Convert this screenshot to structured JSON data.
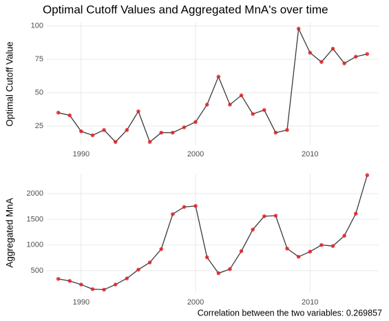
{
  "chart_data": [
    {
      "type": "line",
      "title": "Optimal Cutoff Values and Aggregated MnA's over time",
      "y_label": "Optimal Cutoff Value",
      "x": [
        1988,
        1989,
        1990,
        1991,
        1992,
        1993,
        1994,
        1995,
        1996,
        1997,
        1998,
        1999,
        2000,
        2001,
        2002,
        2003,
        2004,
        2005,
        2006,
        2007,
        2008,
        2009,
        2010,
        2011,
        2012,
        2013,
        2014,
        2015
      ],
      "series": [
        {
          "color": "#e8191c",
          "line_color": "#3a3a3a",
          "values": [
            35,
            33,
            21,
            18,
            22,
            13,
            22,
            36,
            13,
            20,
            20,
            24,
            28,
            41,
            62,
            41,
            48,
            34,
            37,
            20,
            22,
            98,
            80,
            73,
            83,
            72,
            77,
            79
          ]
        }
      ],
      "xlim": [
        1987,
        2016
      ],
      "xticks": [
        1990,
        2000,
        2010
      ],
      "ylim": [
        11,
        103
      ],
      "yticks": [
        25,
        50,
        75,
        100
      ],
      "grid": true
    },
    {
      "type": "line",
      "y_label": "Aggregated MnA",
      "caption": "Correlation between the two variables: 0.269857",
      "x": [
        1988,
        1989,
        1990,
        1991,
        1992,
        1993,
        1994,
        1995,
        1996,
        1997,
        1998,
        1999,
        2000,
        2001,
        2002,
        2003,
        2004,
        2005,
        2006,
        2007,
        2008,
        2009,
        2010,
        2011,
        2012,
        2013,
        2014,
        2015
      ],
      "series": [
        {
          "color": "#e8191c",
          "line_color": "#3a3a3a",
          "values": [
            340,
            300,
            230,
            140,
            130,
            230,
            350,
            520,
            660,
            920,
            1600,
            1740,
            1760,
            760,
            450,
            530,
            880,
            1300,
            1560,
            1570,
            930,
            770,
            870,
            1000,
            980,
            1180,
            1610,
            2360
          ]
        }
      ],
      "xlim": [
        1987,
        2016
      ],
      "xticks": [
        1990,
        2000,
        2010
      ],
      "ylim": [
        70,
        2390
      ],
      "yticks": [
        500,
        1000,
        1500,
        2000
      ],
      "grid": true
    }
  ]
}
